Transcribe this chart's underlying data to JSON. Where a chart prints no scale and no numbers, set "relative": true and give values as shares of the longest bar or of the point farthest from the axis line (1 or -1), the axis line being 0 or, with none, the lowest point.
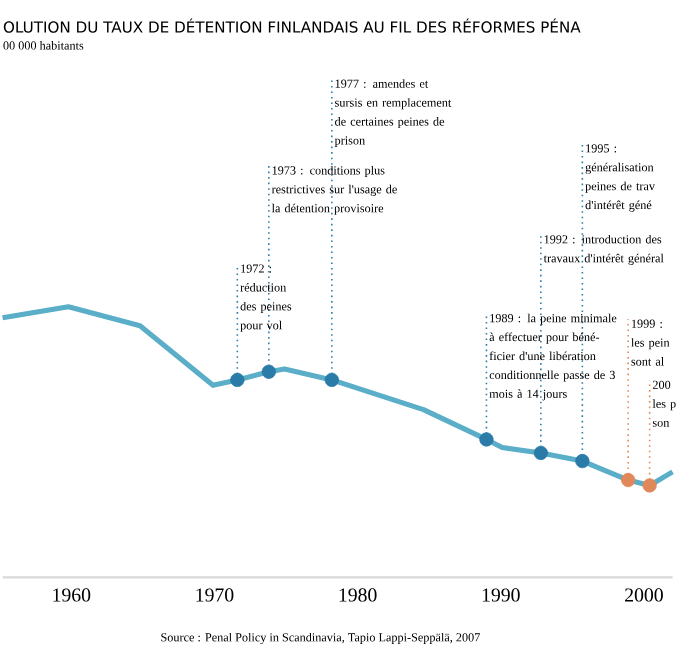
{
  "chart_data": {
    "type": "line",
    "title": "OLUTION DU TAUX DE DÉTENTION FINLANDAIS AU FIL DES RÉFORMES PÉNA",
    "relative": true,
    "xlim": [
      1955.2,
      2002.0
    ],
    "xticks": [
      1960,
      1970,
      1980,
      1990,
      2000
    ],
    "series": [
      {
        "color": "#5aaec8",
        "marker": "none",
        "x": [
          1955.2,
          1959.8,
          1964.8,
          1969.9,
          1971.6,
          1973.8,
          1974.9,
          1978.2,
          1984.6,
          1989.0,
          1990.1,
          1992.8,
          1995.7,
          1998.9,
          2000.4,
          2002.0
        ],
        "values": [
          0.96,
          1,
          0.93,
          0.71,
          0.73,
          0.76,
          0.77,
          0.73,
          0.62,
          0.51,
          0.48,
          0.46,
          0.43,
          0.36,
          0.34,
          0.39
        ]
      },
      {
        "type": "scatter",
        "color": "#2a7ba8",
        "marker": "circle",
        "x": [
          1971.6,
          1973.8,
          1978.2,
          1989.0,
          1992.8,
          1995.7
        ],
        "values": [
          0.73,
          0.76,
          0.73,
          0.51,
          0.46,
          0.43
        ]
      },
      {
        "type": "scatter",
        "color": "#e0885a",
        "marker": "circle",
        "x": [
          1998.9,
          2000.4
        ],
        "values": [
          0.36,
          0.34
        ]
      }
    ],
    "annotations": [
      "00 000 habitants",
      {
        "text": "1977 : amendes et sursis en remplacement de certaines peines de prison",
        "x": 1978.2,
        "y": 0.73
      },
      {
        "text": "1973 : conditions plus restrictives sur l'usage de la détention provisoire",
        "x": 1973.8,
        "y": 0.76
      },
      {
        "text": "1972 : réduction des peines pour vol",
        "x": 1971.6,
        "y": 0.73
      },
      {
        "text": "1995 : généralisation peines de trav d'intérêt géné",
        "x": 1995.7,
        "y": 0.43
      },
      {
        "text": "1992 : introduction des travaux d'intérêt général",
        "x": 1992.8,
        "y": 0.46
      },
      {
        "text": "1989 : la peine minimale à effectuer pour béné-ficier d'une libération conditionnelle passe de 3 mois à 14 jours",
        "x": 1989.0,
        "y": 0.51
      },
      {
        "text": "1999 : les pein sont al",
        "x": 1998.9,
        "y": 0.36
      },
      {
        "text": "200 les p son",
        "x": 2000.4,
        "y": 0.34
      },
      "Source : Penal Policy in Scandinavia, Tapio Lappi-Seppälä, 2007"
    ]
  }
}
